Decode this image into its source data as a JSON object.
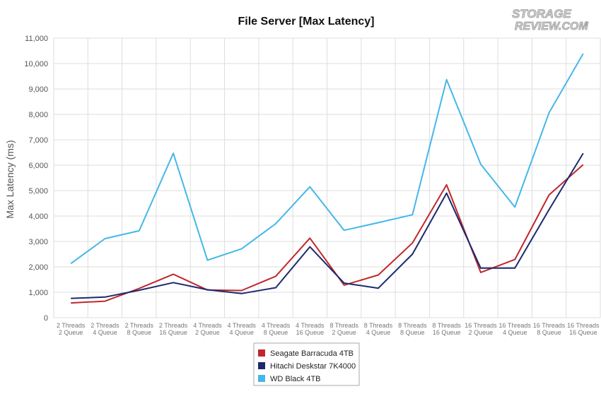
{
  "logo": {
    "line1": "STORAGE",
    "line2": "REVIEW.COM",
    "mark": "®"
  },
  "chart_data": {
    "type": "line",
    "title": "File Server [Max Latency]",
    "xlabel": "",
    "ylabel": "Max Latency (ms)",
    "ylim": [
      0,
      11000
    ],
    "yticks": [
      0,
      1000,
      2000,
      3000,
      4000,
      5000,
      6000,
      7000,
      8000,
      9000,
      10000,
      11000
    ],
    "ytick_labels": [
      "0",
      "1,000",
      "2,000",
      "3,000",
      "4,000",
      "5,000",
      "6,000",
      "7,000",
      "8,000",
      "9,000",
      "10,000",
      "11,000"
    ],
    "grid": true,
    "legend_position": "bottom",
    "categories": [
      [
        "2 Threads",
        "2 Queue"
      ],
      [
        "2 Threads",
        "4 Queue"
      ],
      [
        "2 Threads",
        "8 Queue"
      ],
      [
        "2 Threads",
        "16 Queue"
      ],
      [
        "4 Threads",
        "2 Queue"
      ],
      [
        "4 Threads",
        "4 Queue"
      ],
      [
        "4 Threads",
        "8 Queue"
      ],
      [
        "4 Threads",
        "16 Queue"
      ],
      [
        "8 Threads",
        "2 Queue"
      ],
      [
        "8 Threads",
        "4 Queue"
      ],
      [
        "8 Threads",
        "8 Queue"
      ],
      [
        "8 Threads",
        "16 Queue"
      ],
      [
        "16 Threads",
        "2 Queue"
      ],
      [
        "16 Threads",
        "4 Queue"
      ],
      [
        "16 Threads",
        "8 Queue"
      ],
      [
        "16 Threads",
        "16 Queue"
      ]
    ],
    "series": [
      {
        "name": "Seagate Barracuda 4TB",
        "color": "#c0272d",
        "values": [
          580,
          650,
          1150,
          1710,
          1090,
          1070,
          1630,
          3130,
          1280,
          1680,
          2940,
          5230,
          1780,
          2290,
          4830,
          6020
        ]
      },
      {
        "name": "Hitachi Deskstar 7K4000",
        "color": "#1b2a6e",
        "values": [
          760,
          810,
          1080,
          1380,
          1100,
          950,
          1180,
          2790,
          1360,
          1160,
          2500,
          4900,
          1950,
          1950,
          4250,
          6470
        ]
      },
      {
        "name": "WD Black 4TB",
        "color": "#45b7e8",
        "values": [
          2130,
          3110,
          3420,
          6470,
          2260,
          2710,
          3700,
          5150,
          3440,
          3740,
          4050,
          9370,
          6040,
          4350,
          8060,
          10390
        ]
      }
    ]
  }
}
